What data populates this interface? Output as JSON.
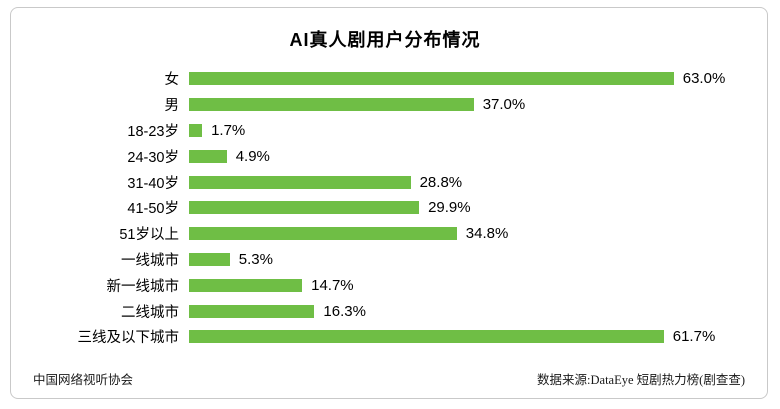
{
  "title": "AI真人剧用户分布情况",
  "footer": {
    "source_left": "中国网络视听协会",
    "source_right": "数据来源:DataEye 短剧热力榜(剧查查)"
  },
  "colors": {
    "bar": "#6fbe45",
    "border": "#c9c9c9",
    "text": "#000000"
  },
  "chart_data": {
    "type": "bar",
    "orientation": "horizontal",
    "title": "AI真人剧用户分布情况",
    "categories": [
      "女",
      "男",
      "18-23岁",
      "24-30岁",
      "31-40岁",
      "41-50岁",
      "51岁以上",
      "一线城市",
      "新一线城市",
      "二线城市",
      "三线及以下城市"
    ],
    "values": [
      63.0,
      37.0,
      1.7,
      4.9,
      28.8,
      29.9,
      34.8,
      5.3,
      14.7,
      16.3,
      61.7
    ],
    "value_labels": [
      "63.0%",
      "37.0%",
      "1.7%",
      "4.9%",
      "28.8%",
      "29.9%",
      "34.8%",
      "5.3%",
      "14.7%",
      "16.3%",
      "61.7%"
    ],
    "unit": "%",
    "xlim": [
      0,
      66
    ],
    "grid": false,
    "legend": "none",
    "data_labels": "outside-end"
  }
}
